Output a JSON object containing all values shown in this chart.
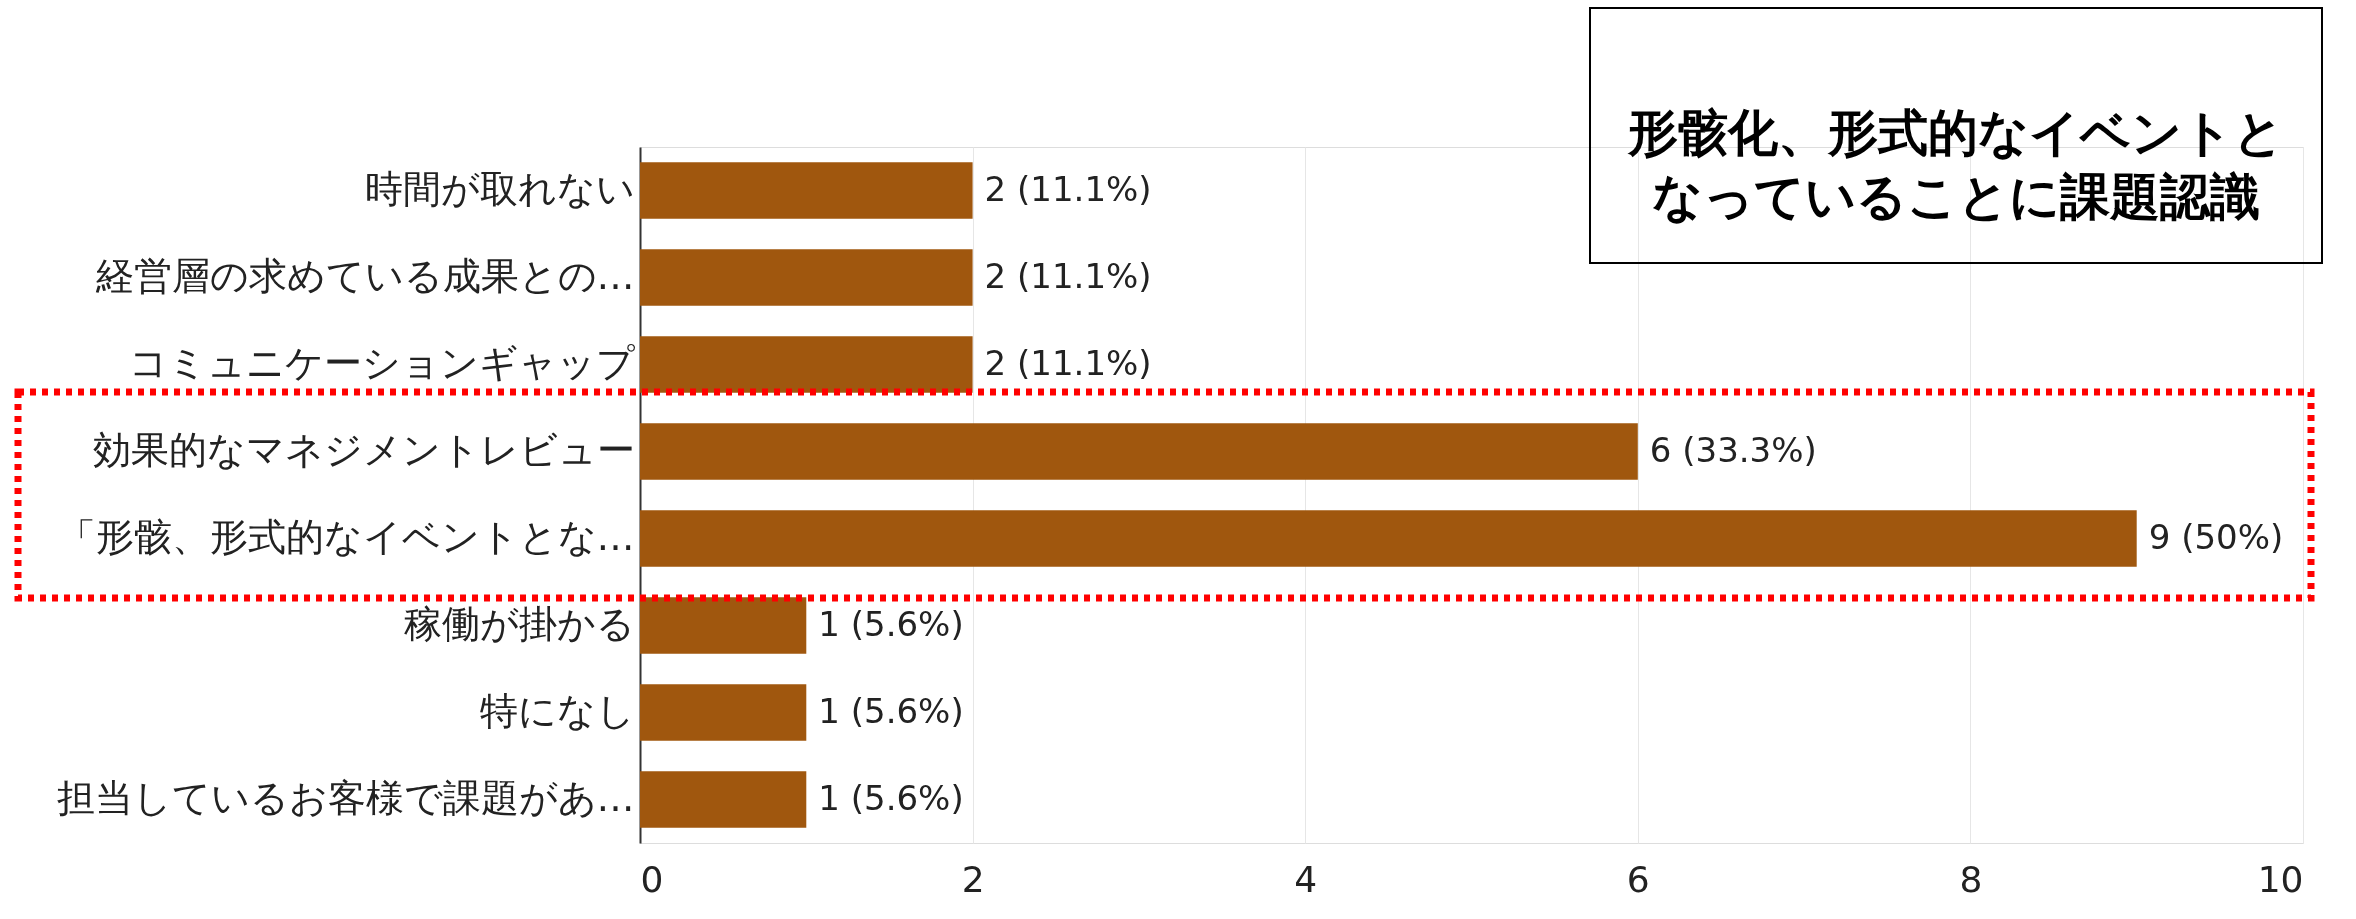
{
  "chart_data": {
    "type": "bar",
    "orientation": "horizontal",
    "categories": [
      "時間が取れない",
      "経営層の求めている成果との…",
      "コミュニケーションギャップ",
      "効果的なマネジメントレビュー",
      "「形骸、形式的なイベントとな…",
      "稼働が掛かる",
      "特になし",
      "担当しているお客様で課題があ…"
    ],
    "values": [
      2,
      2,
      2,
      6,
      9,
      1,
      1,
      1
    ],
    "value_labels": [
      "2 (11.1%)",
      "2 (11.1%)",
      "2 (11.1%)",
      "6 (33.3%)",
      "9 (50%)",
      "1 (5.6%)",
      "1 (5.6%)",
      "1 (5.6%)"
    ],
    "color": "#a0570e",
    "xlim": [
      0,
      10
    ],
    "xticks": [
      0,
      2,
      4,
      6,
      8,
      10
    ],
    "grid": "x",
    "annotations": [
      "形骸化、形式的なイベントとなっていることに課題認識"
    ]
  }
}
